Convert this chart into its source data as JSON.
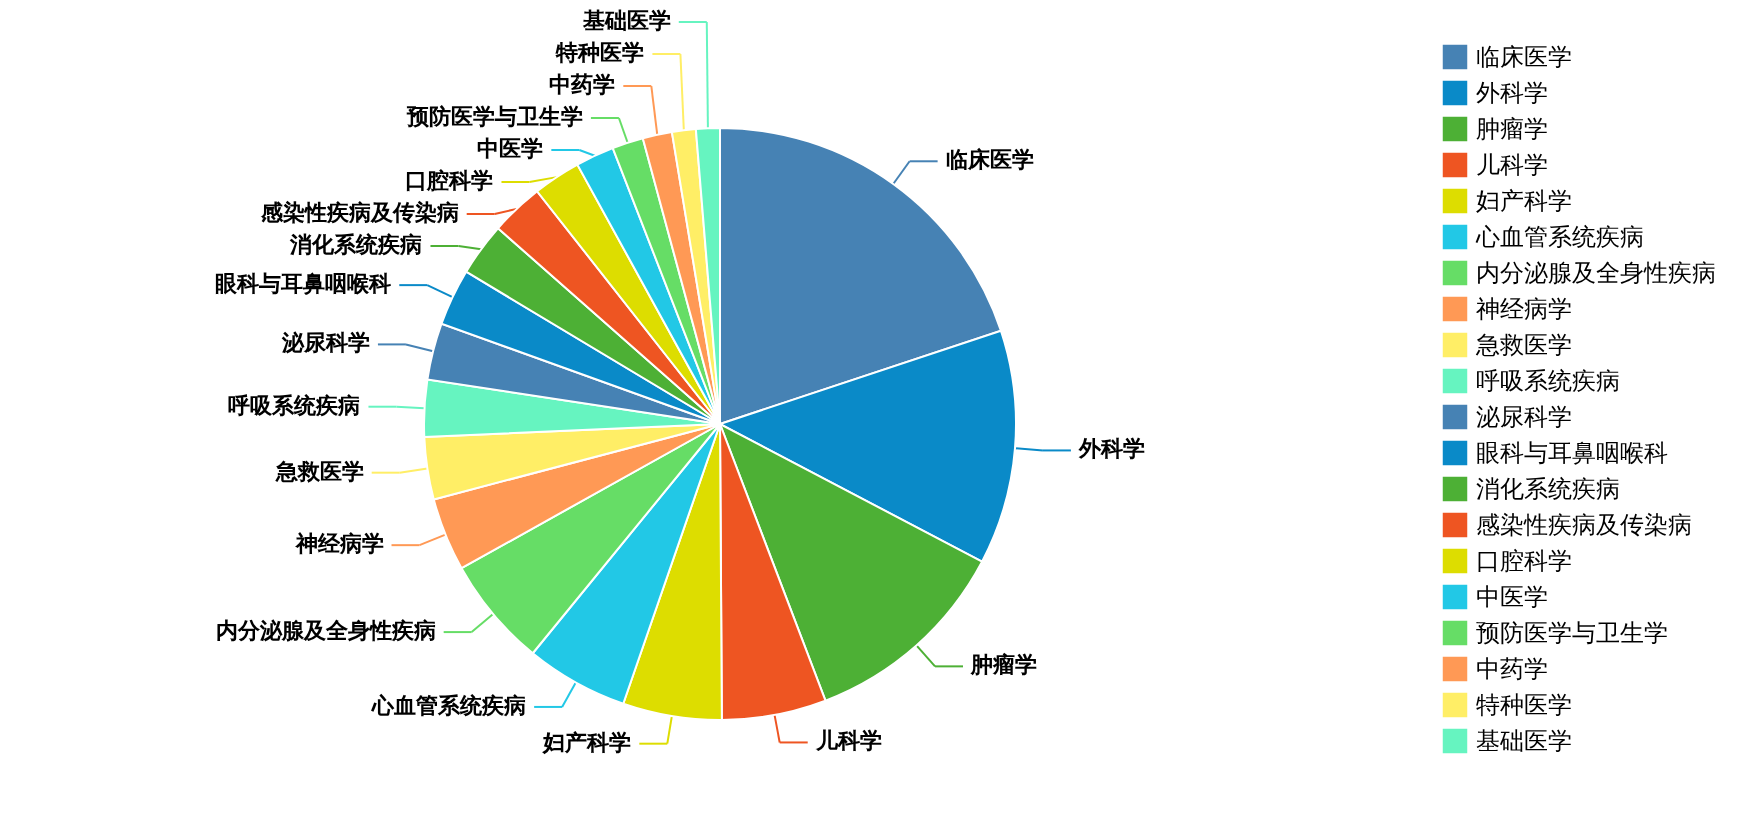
{
  "chart_data": {
    "type": "pie",
    "categories": [
      "临床医学",
      "外科学",
      "肿瘤学",
      "儿科学",
      "妇产科学",
      "心血管系统疾病",
      "内分泌腺及全身性疾病",
      "神经病学",
      "急救医学",
      "呼吸系统疾病",
      "泌尿科学",
      "眼科与耳鼻咽喉科",
      "消化系统疾病",
      "感染性疾病及传染病",
      "口腔科学",
      "中医学",
      "预防医学与卫生学",
      "中药学",
      "特种医学",
      "基础医学"
    ],
    "values": [
      19.9,
      12.8,
      11.5,
      5.7,
      5.4,
      5.6,
      6.0,
      4.0,
      3.4,
      3.1,
      3.1,
      3.1,
      2.9,
      2.9,
      2.6,
      2.1,
      1.7,
      1.6,
      1.3,
      1.3
    ],
    "colors": [
      "#4682b4",
      "#0a8ac8",
      "#4db035",
      "#ee5522",
      "#dddd00",
      "#22c8e6",
      "#66dd66",
      "#ff9955",
      "#ffee66",
      "#66f4c0",
      "#4682b4",
      "#0a8ac8",
      "#4db035",
      "#ee5522",
      "#dddd00",
      "#22c8e6",
      "#66dd66",
      "#ff9955",
      "#ffee66",
      "#66f4c0"
    ],
    "legend": "top right"
  }
}
